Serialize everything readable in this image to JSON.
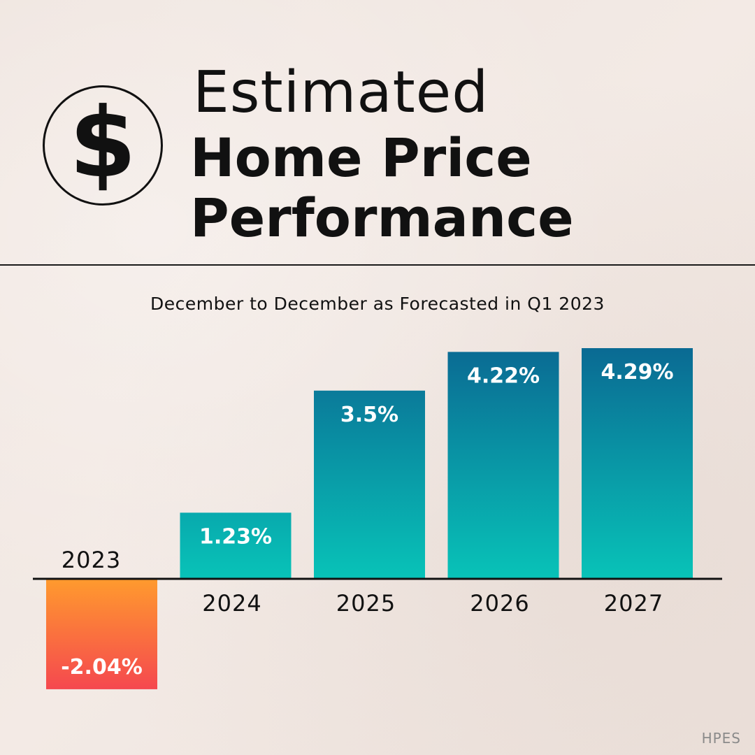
{
  "header": {
    "icon": "dollar-icon",
    "icon_glyph": "$",
    "title_line1": "Estimated",
    "title_line2": "Home Price",
    "title_line3": "Performance"
  },
  "subtitle": "December to December as Forecasted in Q1 2023",
  "footer": "HPES",
  "colors": {
    "positive_top": "#0a6a93",
    "positive_bottom": "#08c3b8",
    "negative_top": "#ff9a2e",
    "negative_bottom": "#f5484f",
    "axis": "#111111"
  },
  "chart_data": {
    "type": "bar",
    "title": "",
    "xlabel": "",
    "ylabel": "",
    "categories": [
      "2023",
      "2024",
      "2025",
      "2026",
      "2027"
    ],
    "values": [
      -2.04,
      1.23,
      3.5,
      4.22,
      4.29
    ],
    "data_labels": [
      "-2.04%",
      "1.23%",
      "3.5%",
      "4.22%",
      "4.29%"
    ],
    "ylim": [
      -2.04,
      4.29
    ],
    "grid": false,
    "legend": "none"
  }
}
